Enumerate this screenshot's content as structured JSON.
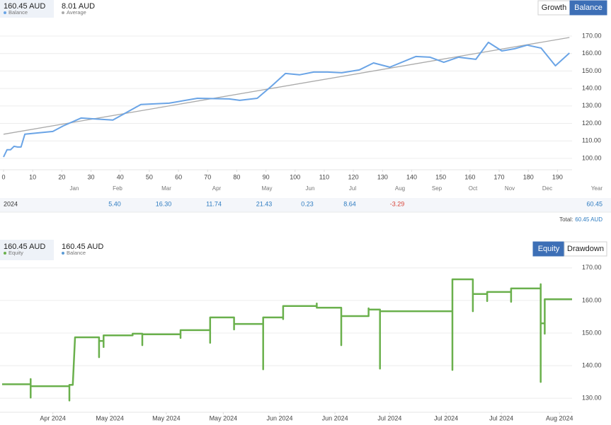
{
  "chart_data": [
    {
      "type": "line",
      "buttons": [
        "Growth",
        "Balance"
      ],
      "active_button": 1,
      "series": [
        {
          "name": "Balance",
          "summary": "160.45 AUD",
          "color": "#6aa4e6",
          "x": [
            0,
            1.2,
            2.4,
            3.6,
            4.8,
            6,
            7.3,
            16.9,
            20.5,
            26.6,
            37.5,
            47.1,
            56.8,
            66.5,
            77.4,
            81,
            87,
            91.9,
            96.7,
            101.5,
            106.4,
            111.2,
            116,
            122,
            126.9,
            132.5,
            141.4,
            146.3,
            151,
            156,
            162,
            166.3,
            170.9,
            175.2,
            179.6,
            184.4,
            189.3,
            194.1
          ],
          "values": [
            100.8,
            104.9,
            104.9,
            106.9,
            106.5,
            106.5,
            113.8,
            115.4,
            118.6,
            123.1,
            121.9,
            130.8,
            131.6,
            134.4,
            134.0,
            133.2,
            134.4,
            141.3,
            148.6,
            147.8,
            149.4,
            149.4,
            149.0,
            150.6,
            154.6,
            152.2,
            158.3,
            157.9,
            155.0,
            157.9,
            156.7,
            166.4,
            161.5,
            162.7,
            164.8,
            163.1,
            153.0,
            160.3
          ]
        },
        {
          "name": "Average",
          "summary": "8.01 AUD",
          "color": "#aaaaaa",
          "x": [
            0,
            194.1
          ],
          "values": [
            113.8,
            169.2
          ]
        }
      ],
      "xlim": [
        0,
        195
      ],
      "xticks": [
        0,
        10,
        20,
        30,
        40,
        50,
        60,
        70,
        80,
        90,
        100,
        110,
        120,
        130,
        140,
        150,
        160,
        170,
        180,
        190
      ],
      "ylim": [
        93.5,
        178.5
      ],
      "yticks": [
        {
          "value": 100,
          "label": "100.00"
        },
        {
          "value": 110,
          "label": "110.00"
        },
        {
          "value": 120,
          "label": "120.00"
        },
        {
          "value": 130,
          "label": "130.00"
        },
        {
          "value": 140,
          "label": "140.00"
        },
        {
          "value": 150,
          "label": "150.00"
        },
        {
          "value": 160,
          "label": "160.00"
        },
        {
          "value": 170,
          "label": "170.00"
        }
      ],
      "grid": true
    },
    {
      "type": "line",
      "buttons": [
        "Equity",
        "Drawdown"
      ],
      "active_button": 0,
      "series": [
        {
          "name": "Equity",
          "summary": "160.45 AUD",
          "color": "#6ab04c",
          "x": [
            0,
            5.0,
            5.0,
            5.0,
            5.0,
            11.8,
            11.8,
            11.8,
            12.4,
            12.8,
            17.0,
            17.0,
            17.0,
            17.8,
            17.8,
            17.8,
            22.9,
            22.9,
            24.6,
            24.6,
            24.6,
            31.3,
            31.3,
            31.3,
            36.5,
            36.5,
            36.5,
            40.7,
            40.7,
            40.7,
            45.8,
            45.8,
            45.8,
            49.3,
            49.3,
            49.3,
            55.2,
            55.2,
            55.2,
            59.5,
            59.5,
            59.5,
            64.3,
            64.3,
            64.3,
            66.3,
            66.3,
            66.3,
            79.0,
            79.0,
            79.0,
            82.6,
            82.6,
            82.6,
            85.1,
            85.1,
            85.1,
            89.3,
            89.3,
            89.3,
            94.5,
            94.5,
            94.5,
            94.5,
            95.2,
            95.2,
            95.2,
            100
          ],
          "values": [
            134.3,
            134.3,
            135.9,
            130.2,
            133.7,
            133.7,
            129.3,
            134.1,
            134.1,
            148.7,
            148.7,
            142.6,
            147.6,
            147.6,
            145.7,
            149.3,
            149.3,
            149.8,
            149.8,
            146.3,
            149.6,
            149.6,
            148.5,
            150.9,
            150.9,
            147.0,
            154.8,
            154.8,
            151.1,
            152.8,
            152.8,
            138.9,
            154.8,
            154.8,
            154.3,
            158.3,
            158.3,
            159.1,
            157.8,
            157.8,
            146.3,
            155.2,
            155.2,
            157.6,
            157.2,
            157.2,
            139.1,
            156.7,
            156.7,
            138.7,
            166.5,
            166.5,
            156.7,
            162.0,
            162.0,
            159.8,
            162.6,
            162.6,
            159.6,
            163.7,
            163.7,
            165.0,
            135.0,
            153.0,
            153.0,
            149.8,
            160.4,
            160.4
          ]
        },
        {
          "name": "Balance",
          "summary": "160.45 AUD",
          "color": "#5b9bd5"
        }
      ],
      "xlim": [
        0,
        100
      ],
      "xticks": [
        {
          "value": 8.9,
          "label": "Apr 2024"
        },
        {
          "value": 18.9,
          "label": "May 2024"
        },
        {
          "value": 28.8,
          "label": "May 2024"
        },
        {
          "value": 38.8,
          "label": "May 2024"
        },
        {
          "value": 48.7,
          "label": "Jun 2024"
        },
        {
          "value": 58.4,
          "label": "Jun 2024"
        },
        {
          "value": 68.0,
          "label": "Jul 2024"
        },
        {
          "value": 77.9,
          "label": "Jul 2024"
        },
        {
          "value": 87.6,
          "label": "Jul 2024"
        },
        {
          "value": 97.8,
          "label": "Aug 2024"
        }
      ],
      "ylim": [
        125.7,
        173.0
      ],
      "yticks": [
        {
          "value": 130,
          "label": "130.00"
        },
        {
          "value": 140,
          "label": "140.00"
        },
        {
          "value": 150,
          "label": "150.00"
        },
        {
          "value": 160,
          "label": "160.00"
        },
        {
          "value": 170,
          "label": "170.00"
        }
      ],
      "grid": true
    }
  ],
  "monthly_table": {
    "header": [
      null,
      "Jan",
      "Feb",
      "Mar",
      "Apr",
      "May",
      "Jun",
      "Jul",
      "Aug",
      "Sep",
      "Oct",
      "Nov",
      "Dec",
      "Year"
    ],
    "rows": [
      [
        "2024",
        null,
        "5.40",
        "16.30",
        "11.74",
        "21.43",
        "0.23",
        "8.64",
        "-3.29",
        null,
        null,
        null,
        null,
        "60.45"
      ]
    ]
  },
  "total": {
    "label": "Total:",
    "value": "60.45 AUD"
  }
}
